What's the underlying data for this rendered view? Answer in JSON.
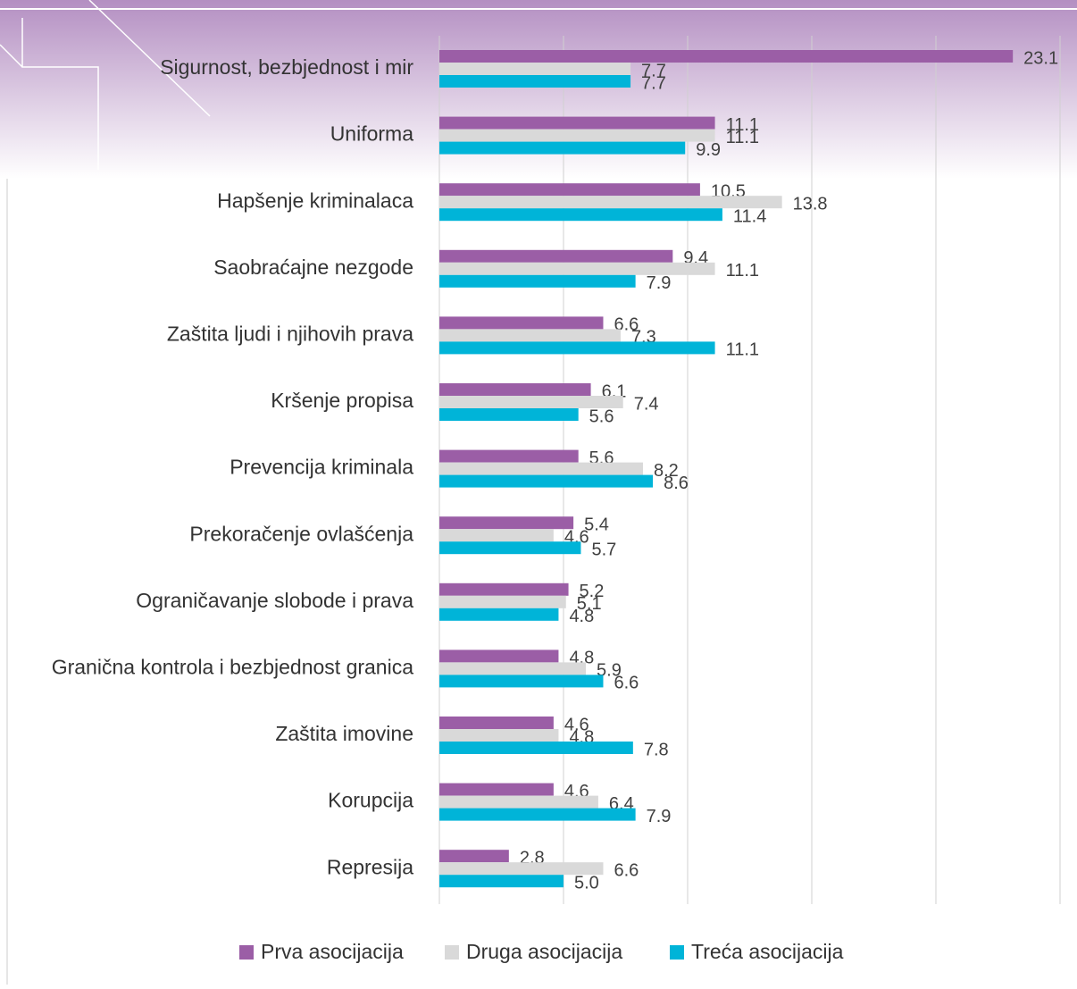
{
  "chart_data": {
    "type": "hbar",
    "categories": [
      "Sigurnost, bezbjednost i  mir",
      "Uniforma",
      "Hapšenje kriminalaca",
      "Saobraćajne nezgode",
      "Zaštita ljudi i njihovih prava",
      "Kršenje propisa",
      "Prevencija kriminala",
      "Prekoračenje ovlašćenja",
      "Ograničavanje slobode i prava",
      "Granična kontrola i bezbjednost granica",
      "Zaštita imovine",
      "Korupcija",
      "Represija"
    ],
    "series": [
      {
        "name": "Prva asocijacija",
        "color": "#9b5ea6",
        "values": [
          23.1,
          11.1,
          10.5,
          9.4,
          6.6,
          6.1,
          5.6,
          5.4,
          5.2,
          4.8,
          4.6,
          4.6,
          2.8
        ],
        "value_labels": [
          "23.1",
          "11.1",
          "10.5",
          "9.4",
          "6.6",
          "6.1",
          "5.6",
          "5.4",
          "5.2",
          "4.8",
          "4.6",
          "4.6",
          "2.8"
        ]
      },
      {
        "name": "Druga asocijacija",
        "color": "#d9d9d9",
        "values": [
          7.7,
          11.1,
          13.8,
          11.1,
          7.3,
          7.4,
          8.2,
          4.6,
          5.1,
          5.9,
          4.8,
          6.4,
          6.6
        ],
        "value_labels": [
          "7.7",
          "11.1",
          "13.8",
          "11.1",
          "7.3",
          "7.4",
          "8.2",
          "4.6",
          "5.1",
          "5.9",
          "4.8",
          "6.4",
          "6.6"
        ]
      },
      {
        "name": "Treća asocijacija",
        "color": "#00b4d8",
        "values": [
          7.7,
          9.9,
          11.4,
          7.9,
          11.1,
          5.6,
          8.6,
          5.7,
          4.8,
          6.6,
          7.8,
          7.9,
          5.0
        ],
        "value_labels": [
          "7.7",
          "9.9",
          "11.4",
          "7.9",
          "11.1",
          "5.6",
          "8.6",
          "5.7",
          "4.8",
          "6.6",
          "7.8",
          "7.9",
          "5.0"
        ]
      }
    ],
    "xlim": [
      0,
      25
    ],
    "xticks": [
      0,
      5,
      10,
      15,
      20,
      25
    ],
    "grid": true
  }
}
